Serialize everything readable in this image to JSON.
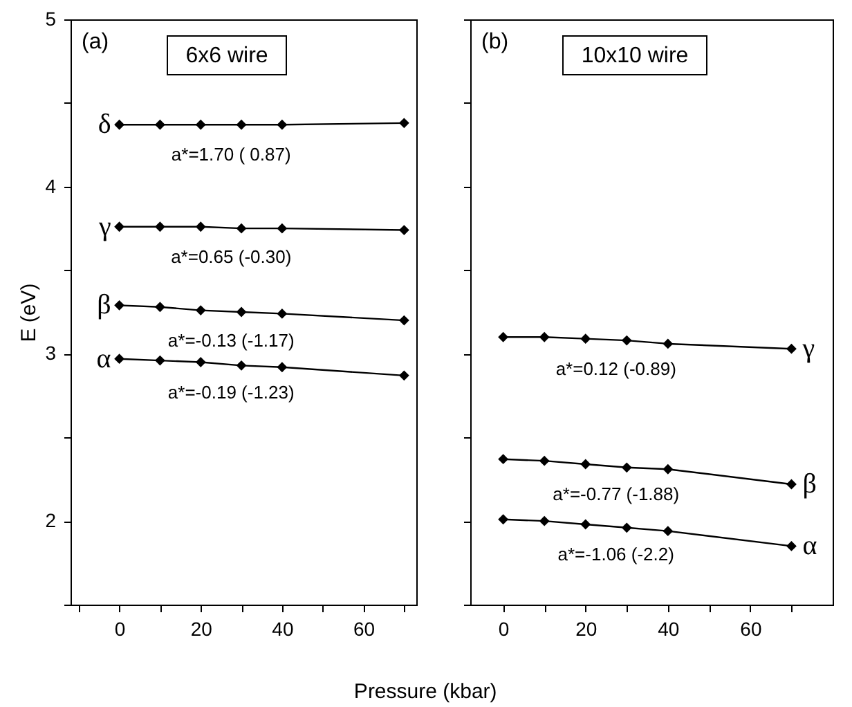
{
  "chart_data": [
    {
      "type": "line",
      "title": "(a)",
      "subtitle": "6x6 wire",
      "xlabel": "Pressure (kbar)",
      "ylabel": "E (eV)",
      "marker": "diamond",
      "line_style": "solid",
      "grid": false,
      "x": [
        0,
        10,
        20,
        30,
        40,
        70
      ],
      "series": [
        {
          "name": "δ",
          "color": "#000000",
          "values": [
            4.37,
            4.37,
            4.37,
            4.37,
            4.37,
            4.38
          ]
        },
        {
          "name": "γ",
          "color": "#000000",
          "values": [
            3.76,
            3.76,
            3.76,
            3.75,
            3.75,
            3.74
          ]
        },
        {
          "name": "β",
          "color": "#000000",
          "values": [
            3.29,
            3.28,
            3.26,
            3.25,
            3.24,
            3.2
          ]
        },
        {
          "name": "α",
          "color": "#000000",
          "values": [
            2.97,
            2.96,
            2.95,
            2.93,
            2.92,
            2.87
          ]
        }
      ],
      "xlim": [
        -12,
        73
      ],
      "xticks": [
        {
          "value": -10,
          "label": null
        },
        0,
        {
          "value": 10,
          "label": null
        },
        20,
        {
          "value": 30,
          "label": null
        },
        40,
        {
          "value": 50,
          "label": null
        },
        60,
        {
          "value": 70,
          "label": null
        }
      ],
      "ylim": [
        1.5,
        5
      ],
      "yticks": [
        {
          "value": 1.5,
          "label": null
        },
        2,
        {
          "value": 2.5,
          "label": null
        },
        3,
        {
          "value": 3.5,
          "label": null
        },
        4,
        {
          "value": 4.5,
          "label": null
        },
        5
      ],
      "annotations": [
        "a*=1.70 ( 0.87)",
        "a*=0.65 (-0.30)",
        "a*=-0.13 (-1.17)",
        "a*=-0.19 (-1.23)"
      ]
    },
    {
      "type": "line",
      "title": "(b)",
      "subtitle": "10x10 wire",
      "marker": "diamond",
      "line_style": "solid",
      "grid": false,
      "tick_labels": "x",
      "x": [
        0,
        10,
        20,
        30,
        40,
        70
      ],
      "series": [
        {
          "name": "γ",
          "color": "#000000",
          "values": [
            3.1,
            3.1,
            3.09,
            3.08,
            3.06,
            3.03
          ]
        },
        {
          "name": "β",
          "color": "#000000",
          "values": [
            2.37,
            2.36,
            2.34,
            2.32,
            2.31,
            2.22
          ]
        },
        {
          "name": "α",
          "color": "#000000",
          "values": [
            2.01,
            2.0,
            1.98,
            1.96,
            1.94,
            1.85
          ]
        }
      ],
      "xlim": [
        -8,
        80
      ],
      "xticks": [
        0,
        {
          "value": 10,
          "label": null
        },
        20,
        {
          "value": 30,
          "label": null
        },
        40,
        {
          "value": 50,
          "label": null
        },
        60,
        {
          "value": 70,
          "label": null
        }
      ],
      "ylim": [
        1.5,
        5
      ],
      "yticks": [
        {
          "value": 1.5,
          "label": null
        },
        2,
        {
          "value": 2.5,
          "label": null
        },
        3,
        {
          "value": 3.5,
          "label": null
        },
        4,
        {
          "value": 4.5,
          "label": null
        },
        5
      ],
      "annotations": [
        "a*=0.12 (-0.89)",
        "a*=-0.77 (-1.88)",
        "a*=-1.06 (-2.2)"
      ]
    }
  ]
}
